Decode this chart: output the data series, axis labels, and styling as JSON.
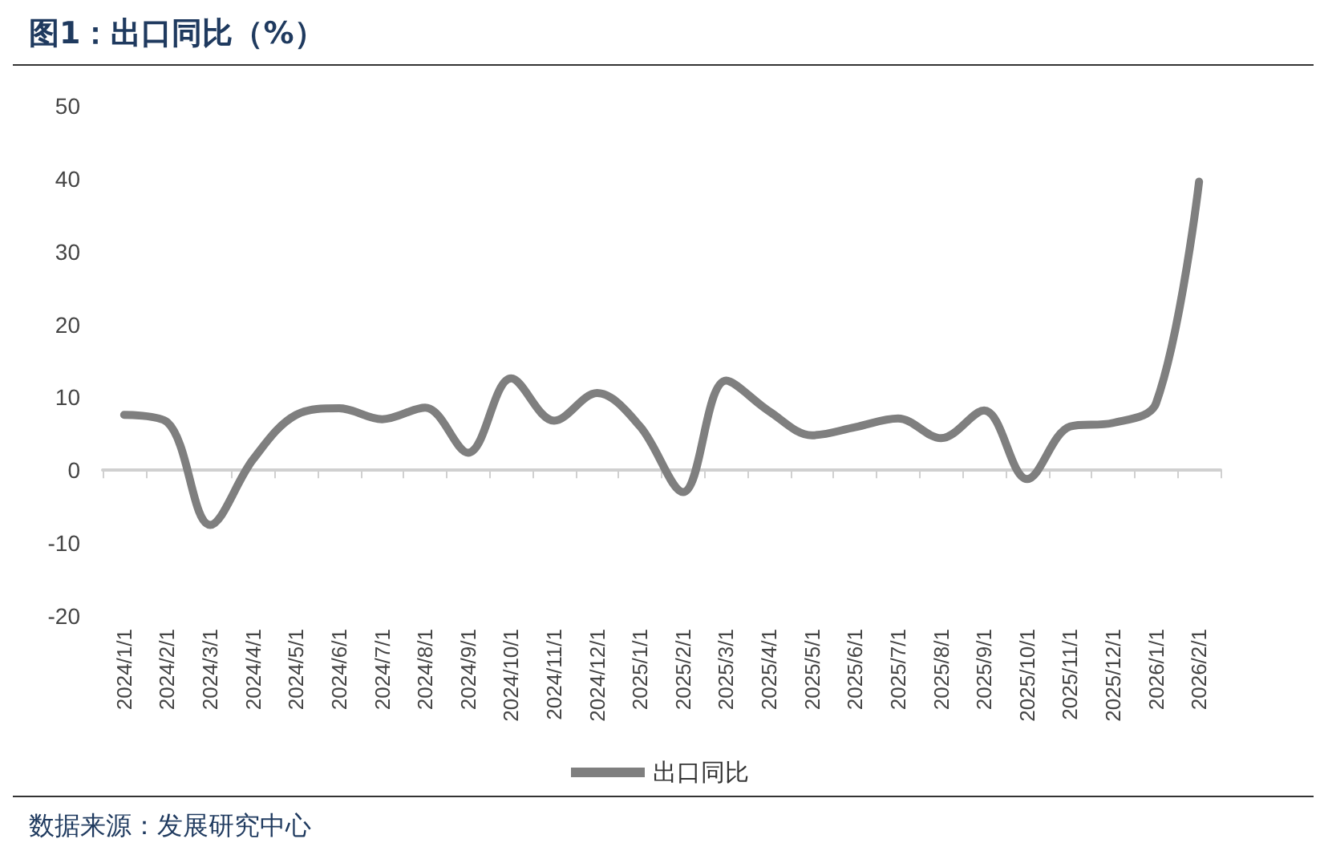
{
  "chart_data": {
    "type": "line",
    "title": "图1：出口同比（%）",
    "categories": [
      "2024/1/1",
      "2024/2/1",
      "2024/3/1",
      "2024/4/1",
      "2024/5/1",
      "2024/6/1",
      "2024/7/1",
      "2024/8/1",
      "2024/9/1",
      "2024/10/1",
      "2024/11/1",
      "2024/12/1",
      "2025/1/1",
      "2025/2/1",
      "2025/3/1",
      "2025/4/1",
      "2025/5/1",
      "2025/6/1",
      "2025/7/1",
      "2025/8/1",
      "2025/9/1",
      "2025/10/1",
      "2025/11/1",
      "2025/12/1",
      "2026/1/1",
      "2026/2/1"
    ],
    "series": [
      {
        "name": "出口同比",
        "color": "#7f7f7f",
        "values": [
          7.6,
          6.6,
          -7.5,
          1.5,
          7.6,
          8.5,
          7.0,
          8.6,
          2.4,
          12.6,
          6.8,
          10.6,
          6.0,
          -3.0,
          12.3,
          8.1,
          4.8,
          5.9,
          7.1,
          4.4,
          8.2,
          -1.2,
          6.0,
          6.5,
          9.2,
          39.6
        ]
      }
    ],
    "ylim": [
      -20,
      50
    ],
    "yticks": [
      -20,
      -10,
      0,
      10,
      20,
      30,
      40,
      50
    ],
    "legend": "bottom",
    "marker": "none",
    "line_style": "solid",
    "annotations": [
      "数据来源：发展研究中心"
    ]
  }
}
